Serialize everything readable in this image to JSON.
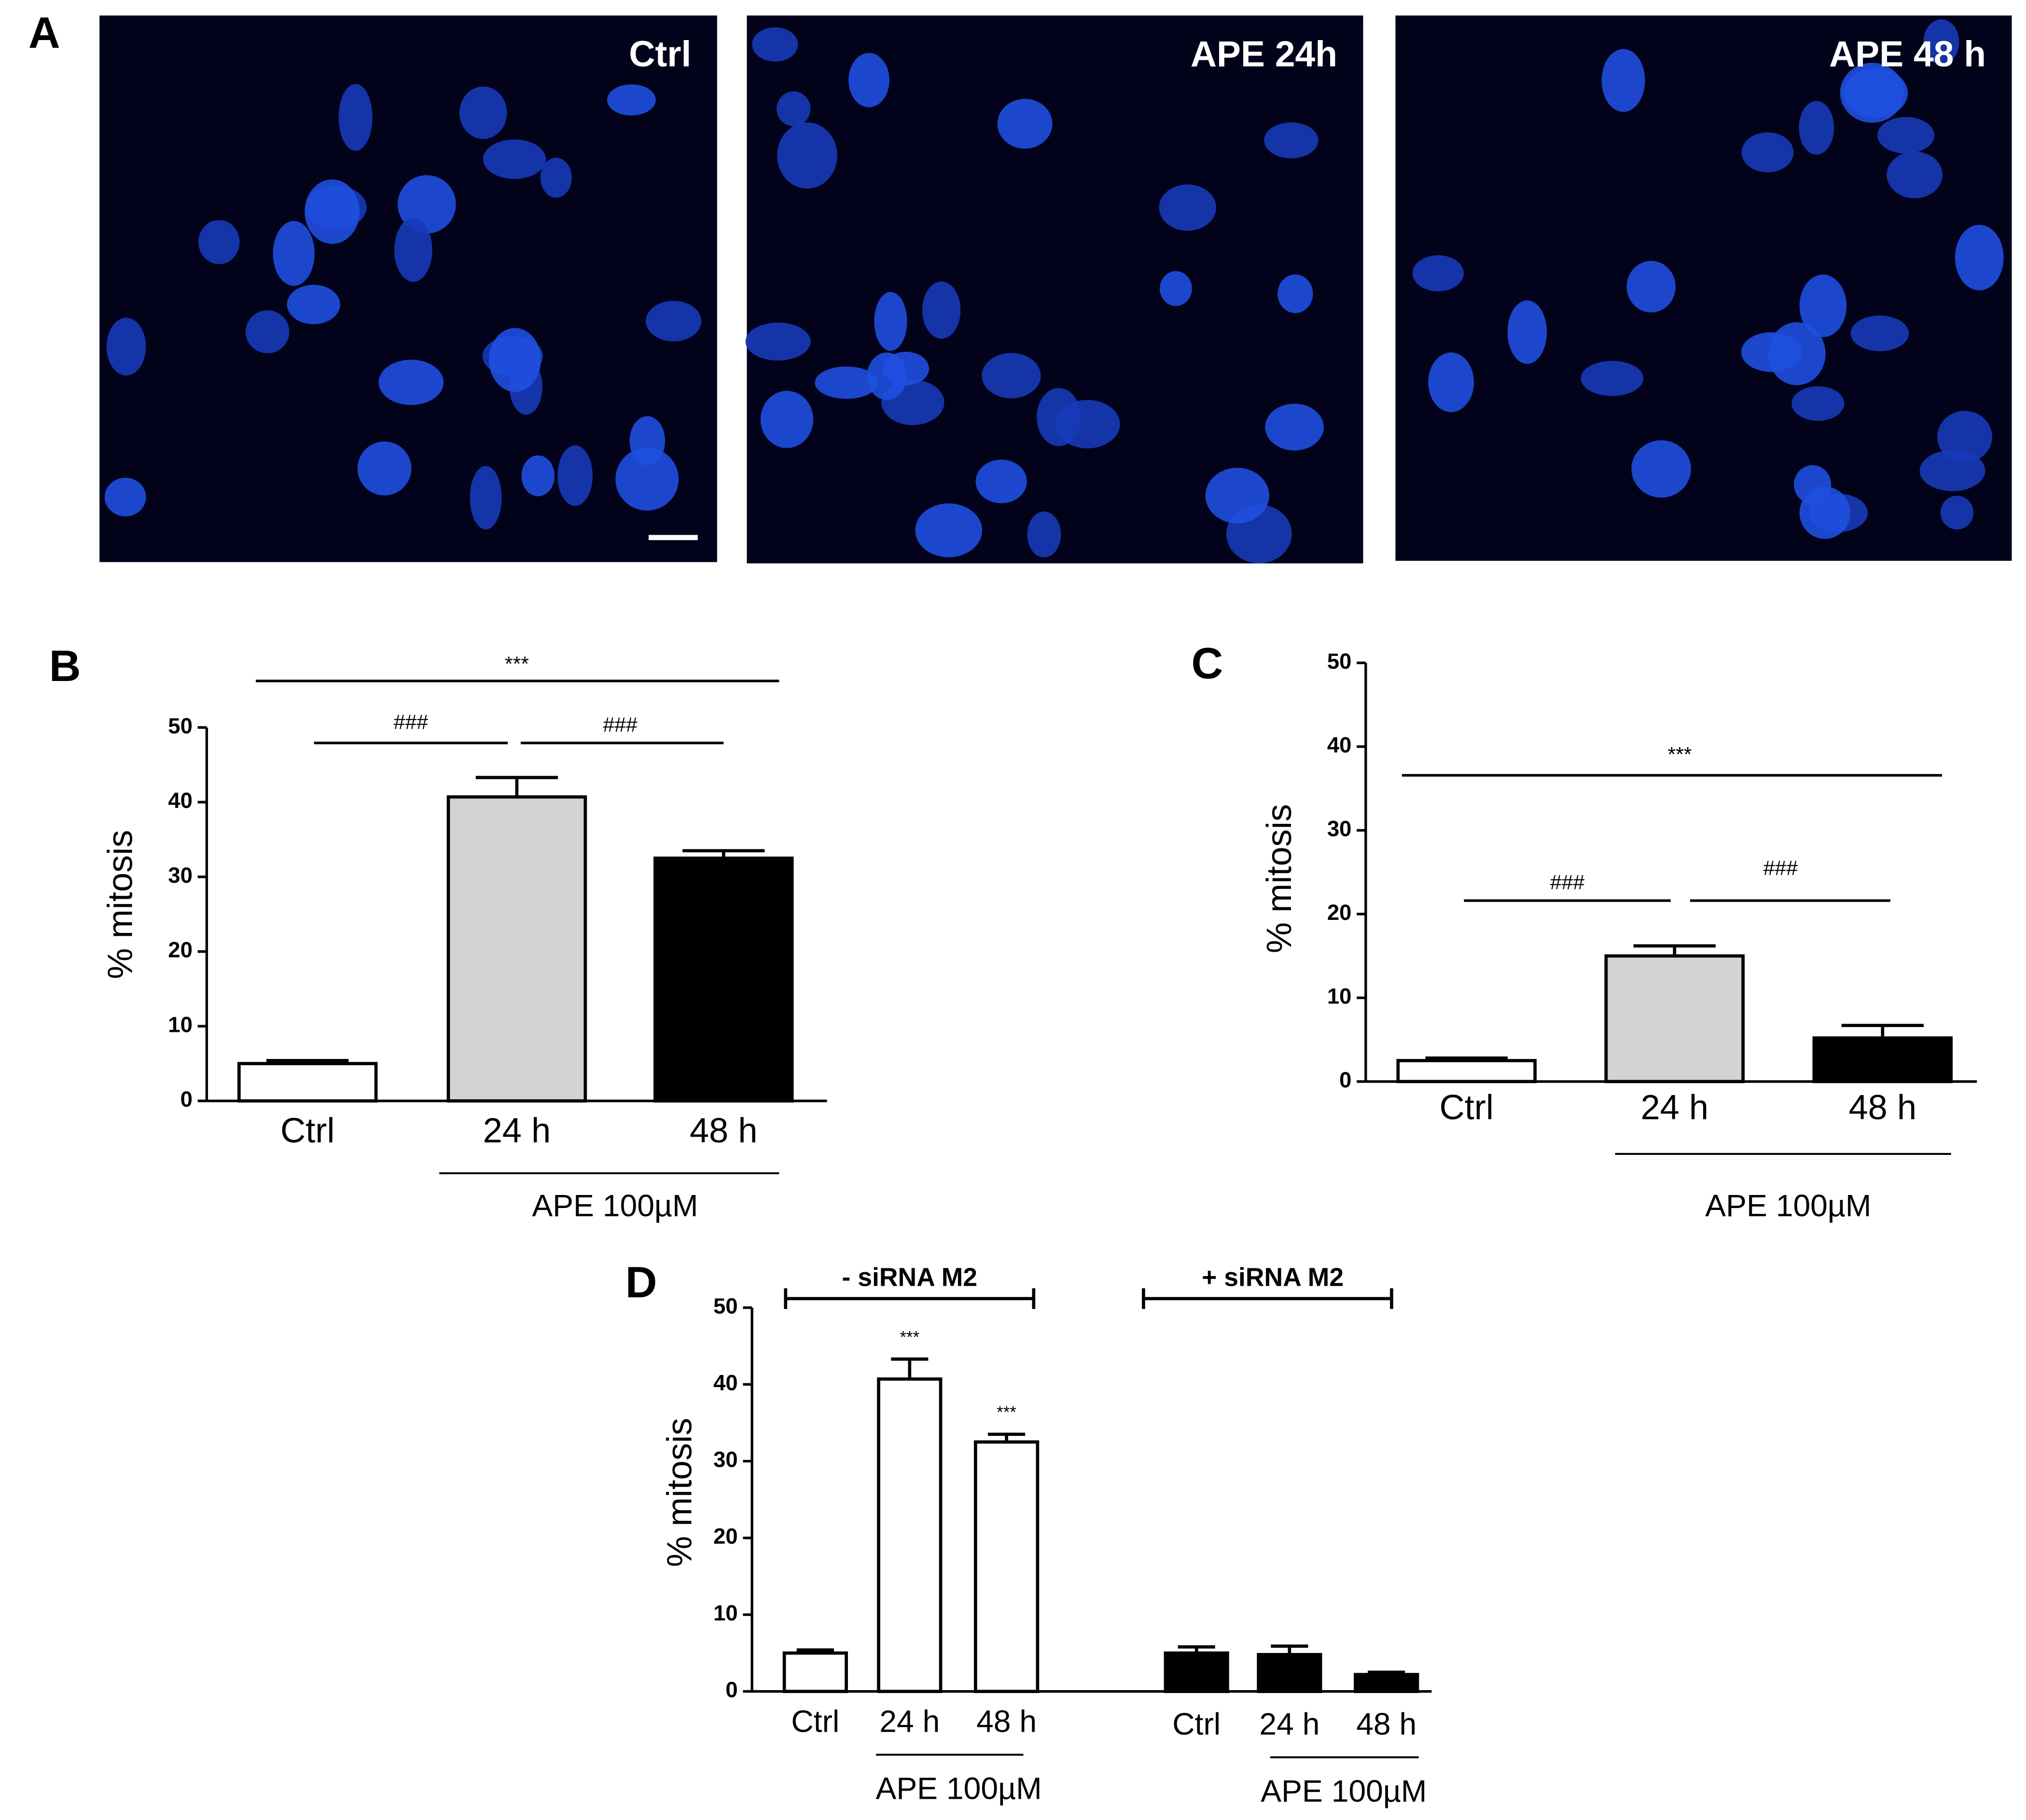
{
  "panel_a": {
    "panel": "A",
    "images": [
      {
        "label": "Ctrl"
      },
      {
        "label": "APE 24h"
      },
      {
        "label": "APE 48 h"
      }
    ]
  },
  "chart_data": [
    {
      "type": "bar",
      "panel": "B",
      "y_label": "% mitosis",
      "categories": [
        "Ctrl",
        "24 h",
        "48 h"
      ],
      "values": [
        5,
        40.7,
        32.5
      ],
      "errors": [
        0.4,
        2.6,
        1.0
      ],
      "colors": [
        "#ffffff",
        "#d3d3d3",
        "#000000"
      ],
      "ylim": [
        0,
        50
      ],
      "yticks": [
        0,
        10,
        20,
        30,
        40,
        50
      ],
      "significance": [
        "***",
        "###",
        "###"
      ],
      "group_labels": [
        "APE 100µM"
      ]
    },
    {
      "type": "bar",
      "panel": "C",
      "y_label": "% mitosis",
      "categories": [
        "Ctrl",
        "24 h",
        "48 h"
      ],
      "values": [
        2.5,
        15,
        5.2
      ],
      "errors": [
        0.3,
        1.2,
        1.5
      ],
      "colors": [
        "#ffffff",
        "#d3d3d3",
        "#000000"
      ],
      "ylim": [
        0,
        50
      ],
      "yticks": [
        0,
        10,
        20,
        30,
        40,
        50
      ],
      "significance": [
        "***",
        "###",
        "###"
      ],
      "group_labels": [
        "APE 100µM"
      ]
    },
    {
      "type": "bar",
      "panel": "D",
      "y_label": "% mitosis",
      "categories": [
        "Ctrl",
        "24 h",
        "48 h",
        "Ctrl",
        "24 h",
        "48 h"
      ],
      "values": [
        5,
        40.7,
        32.5,
        5,
        4.8,
        2.2
      ],
      "errors": [
        0.4,
        2.6,
        1.0,
        0.8,
        1.1,
        0.3
      ],
      "colors": [
        "#ffffff",
        "#ffffff",
        "#ffffff",
        "#000000",
        "#000000",
        "#000000"
      ],
      "ylim": [
        0,
        50
      ],
      "yticks": [
        0,
        10,
        20,
        30,
        40,
        50
      ],
      "significance": [
        "***",
        "***"
      ],
      "group_titles": [
        "-  siRNA M2",
        "+  siRNA M2"
      ],
      "group_labels": [
        "APE 100µM",
        "APE 100µM"
      ]
    }
  ]
}
